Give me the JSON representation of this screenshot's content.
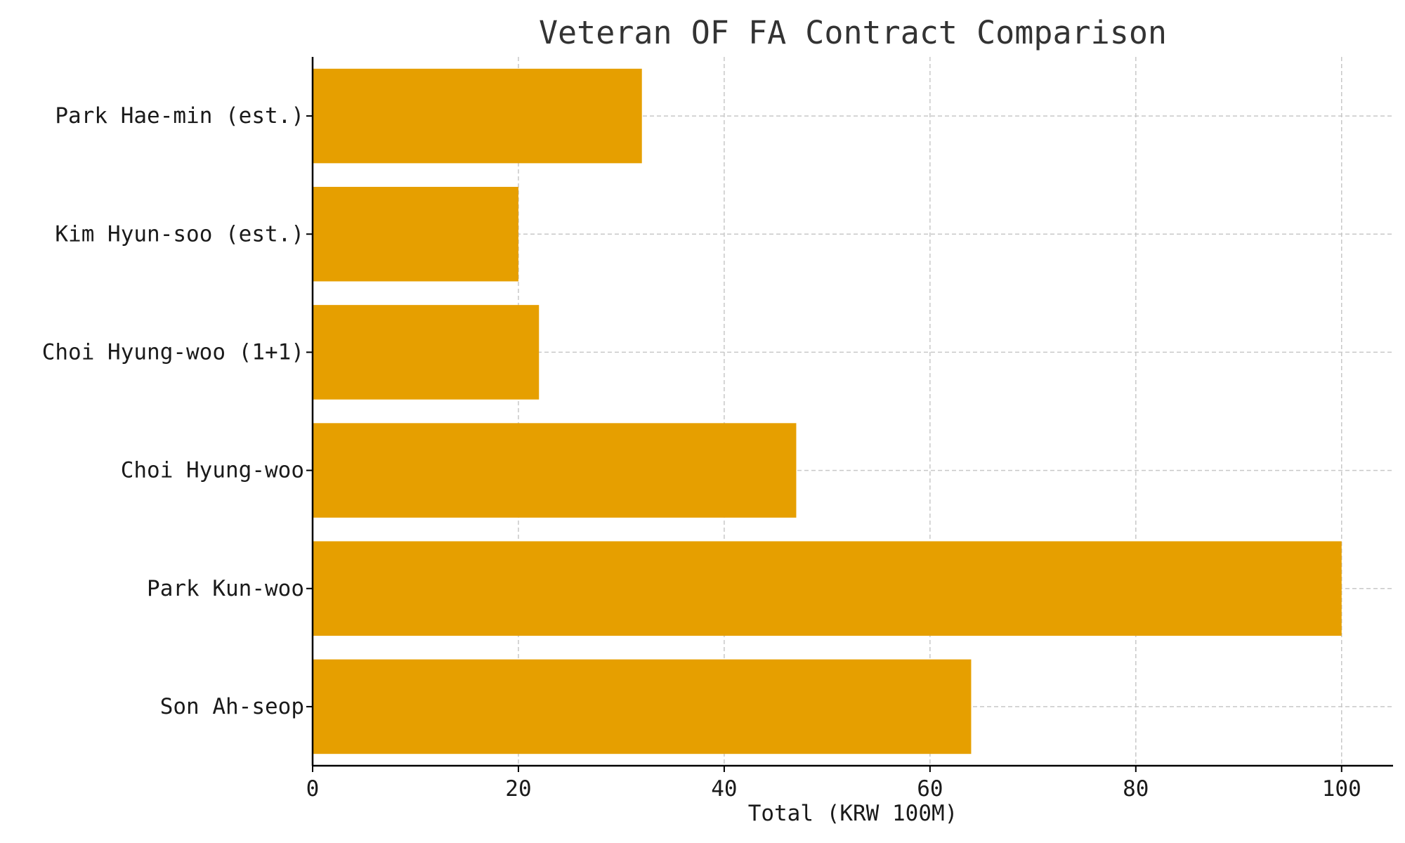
{
  "chart_data": {
    "type": "bar",
    "orientation": "horizontal",
    "title": "Veteran OF FA Contract Comparison",
    "xlabel": "Total (KRW 100M)",
    "ylabel": "",
    "categories": [
      "Son Ah-seop",
      "Park Kun-woo",
      "Choi Hyung-woo",
      "Choi Hyung-woo (1+1)",
      "Kim Hyun-soo (est.)",
      "Park Hae-min (est.)"
    ],
    "values": [
      64,
      100,
      47,
      22,
      20,
      32
    ],
    "xlim": [
      0,
      105
    ],
    "xticks": [
      0,
      20,
      40,
      60,
      80,
      100
    ],
    "grid": true,
    "bar_color": "#E69F00"
  }
}
